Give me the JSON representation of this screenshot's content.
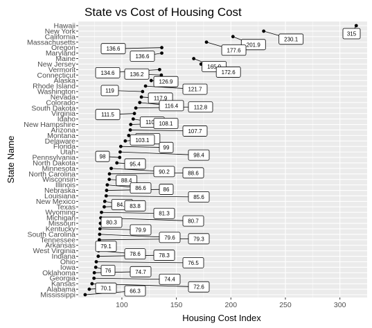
{
  "chart_data": {
    "type": "scatter",
    "title": "State vs Cost of Housing Cost",
    "xlabel": "Housing Cost Index",
    "ylabel": "State Name",
    "xlim": [
      60,
      325
    ],
    "xticks": [
      100,
      150,
      200,
      250,
      300
    ],
    "grid": true,
    "legend": "none",
    "points": [
      {
        "state": "Hawaii",
        "value": 315
      },
      {
        "state": "New York",
        "value": 230.1
      },
      {
        "state": "California",
        "value": 201.9
      },
      {
        "state": "Massachusetts",
        "value": 177.6
      },
      {
        "state": "Oregon",
        "value": 136.6
      },
      {
        "state": "Maryland",
        "value": 136.6
      },
      {
        "state": "Maine",
        "value": 165.9
      },
      {
        "state": "New Jersey",
        "value": 172.6
      },
      {
        "state": "Vermont",
        "value": 134.6
      },
      {
        "state": "Connecticut",
        "value": 136.2
      },
      {
        "state": "Alaska",
        "value": 126.9
      },
      {
        "state": "Rhode Island",
        "value": 121.7
      },
      {
        "state": "Washington",
        "value": 119
      },
      {
        "state": "Nevada",
        "value": 117.9
      },
      {
        "state": "Colorado",
        "value": 116.4
      },
      {
        "state": "South Dakota",
        "value": 112.8
      },
      {
        "state": "Virginia",
        "value": 111.5
      },
      {
        "state": "Idaho",
        "value": 110.4
      },
      {
        "state": "New Hampshire",
        "value": 108.1
      },
      {
        "state": "Arizona",
        "value": 107.7
      },
      {
        "state": "Montana",
        "value": 106.3
      },
      {
        "state": "Delaware",
        "value": 103.1
      },
      {
        "state": "Florida",
        "value": 99
      },
      {
        "state": "Utah",
        "value": 98.4
      },
      {
        "state": "Pennsylvania",
        "value": 98
      },
      {
        "state": "North Dakota",
        "value": 95.4
      },
      {
        "state": "Minnesota",
        "value": 90.2
      },
      {
        "state": "North Carolina",
        "value": 88.6
      },
      {
        "state": "Wisconsin",
        "value": 88.4
      },
      {
        "state": "Illinois",
        "value": 86.6
      },
      {
        "state": "Nebraska",
        "value": 86
      },
      {
        "state": "Louisiana",
        "value": 85.6
      },
      {
        "state": "New Mexico",
        "value": 84.3
      },
      {
        "state": "Texas",
        "value": 83.8
      },
      {
        "state": "Wyoming",
        "value": 81.3
      },
      {
        "state": "Michigan",
        "value": 80.7
      },
      {
        "state": "Missouri",
        "value": 80.3
      },
      {
        "state": "Kentucky",
        "value": 79.9
      },
      {
        "state": "South Carolina",
        "value": 79.6
      },
      {
        "state": "Tennessee",
        "value": 79.3
      },
      {
        "state": "Arkansas",
        "value": 79.1
      },
      {
        "state": "West Virginia",
        "value": 78.6
      },
      {
        "state": "Indiana",
        "value": 78.3
      },
      {
        "state": "Ohio",
        "value": 76.5
      },
      {
        "state": "Iowa",
        "value": 76
      },
      {
        "state": "Oklahoma",
        "value": 74.7
      },
      {
        "state": "Georgia",
        "value": 74.4
      },
      {
        "state": "Kansas",
        "value": 72.6
      },
      {
        "state": "Alabama",
        "value": 70.1
      },
      {
        "state": "Mississippi",
        "value": 66.3
      }
    ]
  }
}
